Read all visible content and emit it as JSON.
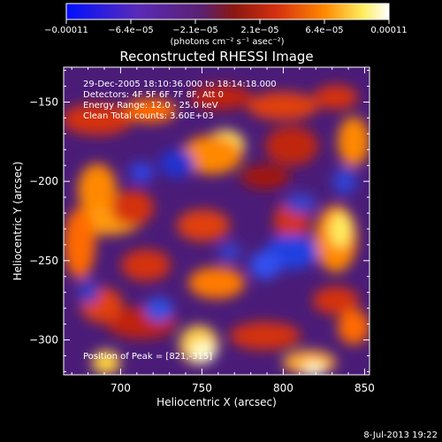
{
  "chart_data": {
    "type": "heatmap",
    "title": "Reconstructed RHESSI Image",
    "xlabel": "Heliocentric X (arcsec)",
    "ylabel": "Heliocentric Y (arcsec)",
    "xlim": [
      665,
      853
    ],
    "ylim": [
      -322,
      -128
    ],
    "x_ticks": [
      700,
      750,
      800,
      850
    ],
    "y_ticks": [
      -300,
      -250,
      -200,
      -150
    ],
    "x_tick_labels": [
      "700",
      "750",
      "800",
      "850"
    ],
    "y_tick_labels": [
      "−300",
      "−250",
      "−200",
      "−150"
    ],
    "colorbar": {
      "min": -0.00011,
      "max": 0.00011,
      "tick_labels": [
        "−0.00011",
        "−6.4e−05",
        "−2.1e−05",
        "2.1e−05",
        "6.4e−05",
        "0.00011"
      ],
      "units": "(photons cm⁻² s⁻¹ asec⁻²)",
      "colors": [
        "#0010ff",
        "#5a2ab8",
        "#5a2070",
        "#8a1810",
        "#d43010",
        "#ff8800",
        "#ffee60",
        "#ffffff"
      ]
    },
    "annotations": [
      "29-Dec-2005 18:10:36.000 to 18:14:18.000",
      "Detectors: 4F 5F 6F 7F 8F, Att 0",
      "Energy Range: 12.0 - 25.0 keV",
      "Clean     Total counts: 3.60E+03",
      "Position of Peak = [821,-315]"
    ],
    "grid": false
  },
  "footer": {
    "date": "8-Jul-2013 19:22"
  }
}
